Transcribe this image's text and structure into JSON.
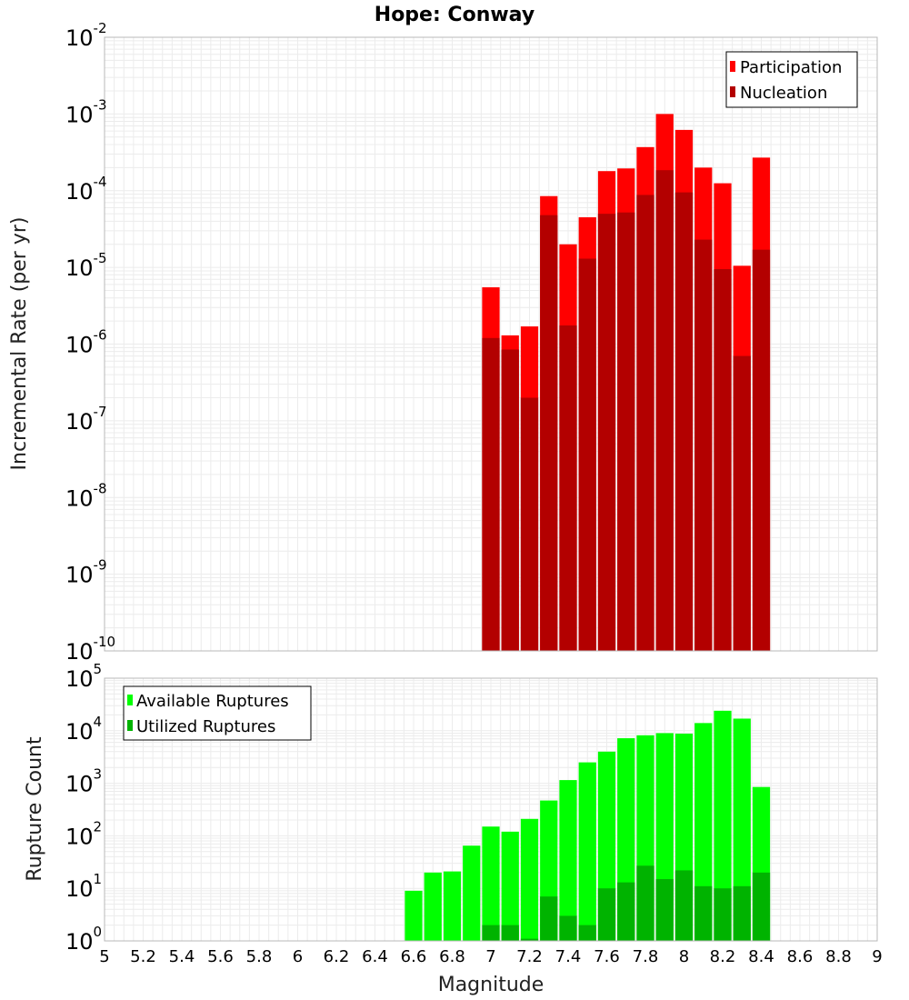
{
  "chart_data": [
    {
      "type": "bar",
      "title": "Hope: Conway",
      "ylabel": "Incremental Rate (per yr)",
      "yscale": "log",
      "ylim_exponents": [
        -10,
        -2
      ],
      "xlim": [
        5,
        9
      ],
      "grid": true,
      "legend_position": "top-right",
      "x": [
        7.0,
        7.1,
        7.2,
        7.3,
        7.4,
        7.5,
        7.6,
        7.7,
        7.8,
        7.9,
        8.0,
        8.1,
        8.2,
        8.3,
        8.4
      ],
      "series": [
        {
          "name": "Participation",
          "color": "#ff0000",
          "values": [
            5.5e-06,
            1.3e-06,
            1.7e-06,
            8.5e-05,
            2e-05,
            4.5e-05,
            0.00018,
            0.000195,
            0.00037,
            0.001,
            0.00062,
            0.0002,
            0.000125,
            1.05e-05,
            0.00027
          ]
        },
        {
          "name": "Nucleation",
          "color": "#b30000",
          "values": [
            1.2e-06,
            8.5e-07,
            2e-07,
            4.8e-05,
            1.75e-06,
            1.3e-05,
            5e-05,
            5.2e-05,
            8.8e-05,
            0.000185,
            9.5e-05,
            2.3e-05,
            9.5e-06,
            7e-07,
            1.7e-05
          ]
        }
      ]
    },
    {
      "type": "bar",
      "ylabel": "Rupture Count",
      "xlabel": "Magnitude",
      "yscale": "log",
      "ylim_exponents": [
        0,
        5
      ],
      "xlim": [
        5,
        9
      ],
      "grid": true,
      "legend_position": "top-left",
      "x": [
        6.6,
        6.7,
        6.8,
        6.9,
        7.0,
        7.1,
        7.2,
        7.3,
        7.4,
        7.5,
        7.6,
        7.7,
        7.8,
        7.9,
        8.0,
        8.1,
        8.2,
        8.3,
        8.4
      ],
      "series": [
        {
          "name": "Available Ruptures",
          "color": "#00ff00",
          "values": [
            9,
            20,
            21,
            65,
            150,
            120,
            210,
            470,
            1150,
            2500,
            4000,
            7200,
            8200,
            9000,
            8800,
            14000,
            24000,
            17000,
            850
          ]
        },
        {
          "name": "Utilized Ruptures",
          "color": "#00b300",
          "values": [
            null,
            null,
            null,
            null,
            2,
            2,
            1.1,
            7,
            3,
            2,
            10,
            13,
            27,
            15,
            22,
            11,
            10,
            11,
            20
          ]
        }
      ]
    }
  ],
  "x_ticks": [
    "5",
    "5.2",
    "5.4",
    "5.6",
    "5.8",
    "6",
    "6.2",
    "6.4",
    "6.6",
    "6.8",
    "7",
    "7.2",
    "7.4",
    "7.6",
    "7.8",
    "8",
    "8.2",
    "8.4",
    "8.6",
    "8.8",
    "9"
  ],
  "colors": {
    "grid": "#ececec",
    "frame": "#b8b8b8",
    "bar_separator": "#ffffff"
  }
}
